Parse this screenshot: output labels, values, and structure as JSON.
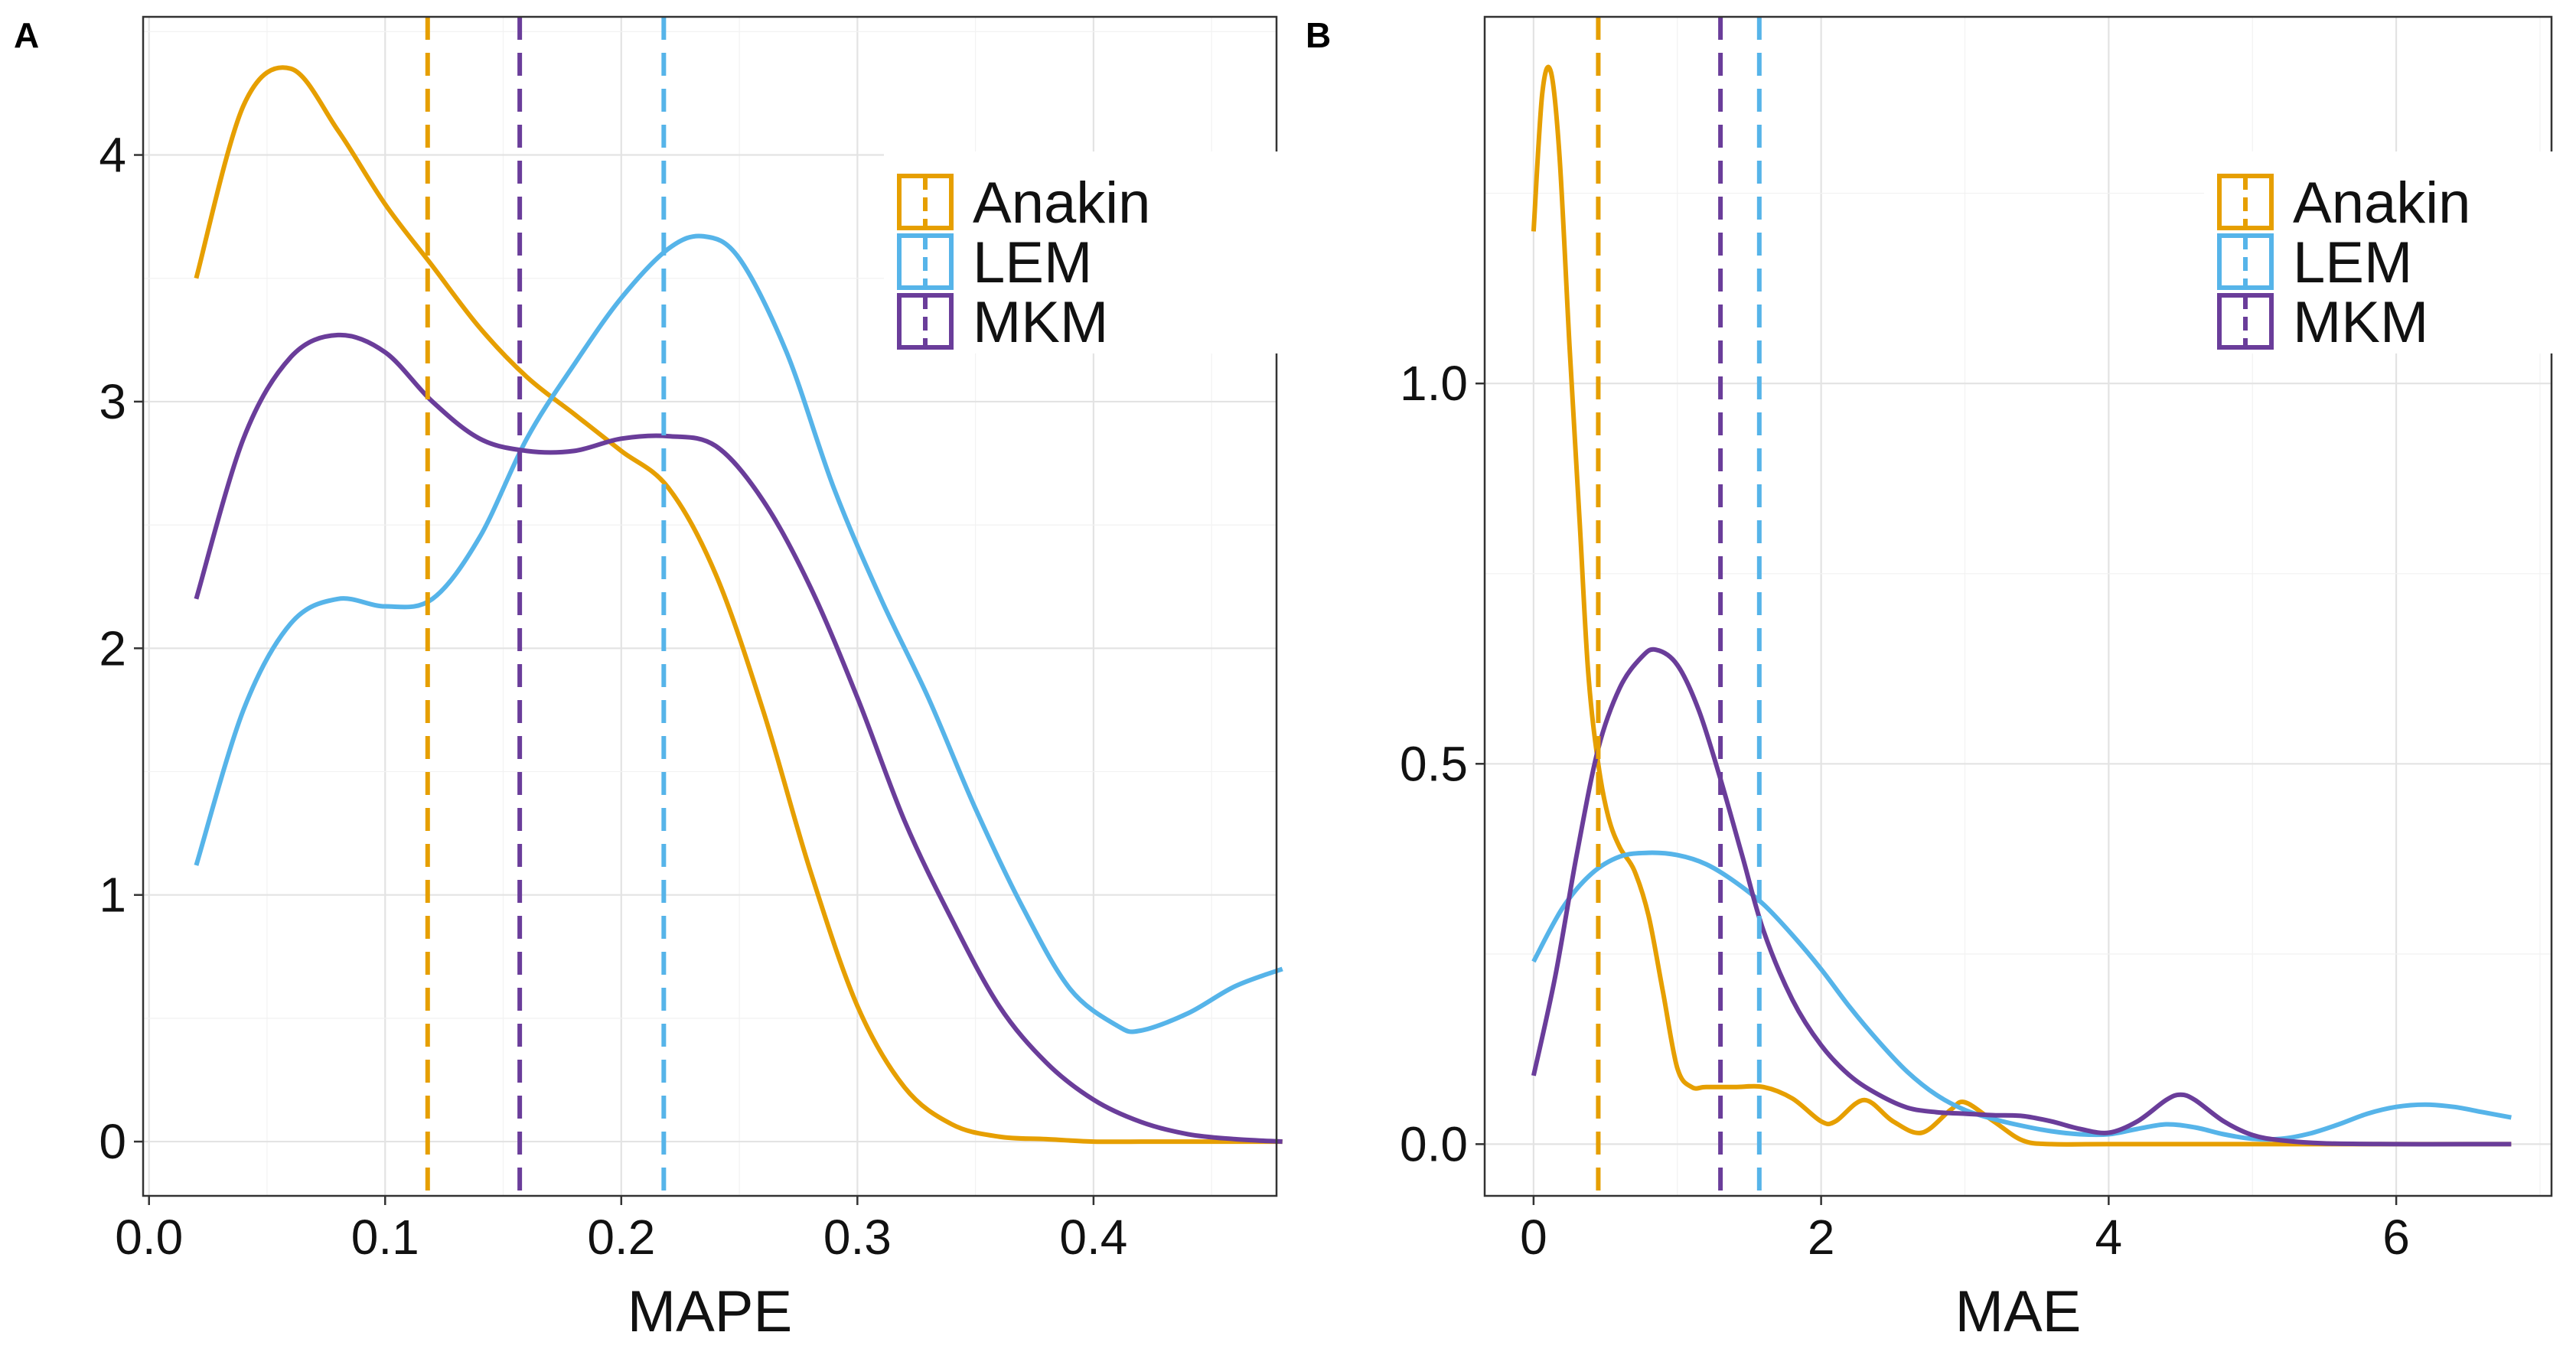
{
  "colors": {
    "Anakin": "#E69F00",
    "LEM": "#56B4E9",
    "MKM": "#6A3D9A"
  },
  "chart_data": [
    {
      "panel": "A",
      "type": "line",
      "xlabel": "MAPE",
      "ylabel": "",
      "xlim": [
        -0.0025,
        0.4775
      ],
      "ylim": [
        -0.22,
        4.56
      ],
      "xticks": [
        0.0,
        0.1,
        0.2,
        0.3,
        0.4
      ],
      "xtick_labels": [
        "0.0",
        "0.1",
        "0.2",
        "0.3",
        "0.4"
      ],
      "yticks": [
        0,
        1,
        2,
        3,
        4
      ],
      "ytick_labels": [
        "0",
        "1",
        "2",
        "3",
        "4"
      ],
      "grid": true,
      "legend": {
        "position": "top-right",
        "entries": [
          "Anakin",
          "LEM",
          "MKM"
        ]
      },
      "series": [
        {
          "name": "Anakin",
          "x": [
            0.02,
            0.04,
            0.06,
            0.08,
            0.1,
            0.12,
            0.14,
            0.16,
            0.18,
            0.2,
            0.22,
            0.24,
            0.26,
            0.28,
            0.3,
            0.32,
            0.34,
            0.36,
            0.38,
            0.4,
            0.42,
            0.44,
            0.46,
            0.48
          ],
          "y": [
            3.5,
            4.2,
            4.35,
            4.1,
            3.8,
            3.55,
            3.3,
            3.1,
            2.95,
            2.8,
            2.65,
            2.3,
            1.75,
            1.1,
            0.55,
            0.22,
            0.07,
            0.02,
            0.01,
            0.0,
            0.0,
            0.0,
            0.0,
            0.0
          ]
        },
        {
          "name": "LEM",
          "x": [
            0.02,
            0.04,
            0.06,
            0.08,
            0.1,
            0.12,
            0.14,
            0.16,
            0.18,
            0.2,
            0.22,
            0.235,
            0.25,
            0.27,
            0.29,
            0.31,
            0.33,
            0.35,
            0.37,
            0.39,
            0.41,
            0.42,
            0.44,
            0.46,
            0.48
          ],
          "y": [
            1.12,
            1.75,
            2.1,
            2.2,
            2.17,
            2.2,
            2.45,
            2.85,
            3.15,
            3.42,
            3.62,
            3.67,
            3.58,
            3.2,
            2.65,
            2.2,
            1.8,
            1.35,
            0.95,
            0.62,
            0.47,
            0.45,
            0.52,
            0.63,
            0.7
          ]
        },
        {
          "name": "MKM",
          "x": [
            0.02,
            0.04,
            0.06,
            0.08,
            0.1,
            0.12,
            0.14,
            0.16,
            0.18,
            0.2,
            0.22,
            0.24,
            0.26,
            0.28,
            0.3,
            0.32,
            0.34,
            0.36,
            0.38,
            0.4,
            0.42,
            0.44,
            0.46,
            0.48
          ],
          "y": [
            2.2,
            2.85,
            3.18,
            3.27,
            3.2,
            3.0,
            2.85,
            2.8,
            2.8,
            2.85,
            2.86,
            2.82,
            2.6,
            2.25,
            1.8,
            1.3,
            0.9,
            0.55,
            0.32,
            0.17,
            0.08,
            0.03,
            0.01,
            0.0
          ]
        }
      ],
      "vlines": [
        {
          "name": "Anakin",
          "x": 0.118
        },
        {
          "name": "MKM",
          "x": 0.157
        },
        {
          "name": "LEM",
          "x": 0.218
        }
      ]
    },
    {
      "panel": "B",
      "type": "line",
      "xlabel": "MAE",
      "ylabel": "",
      "xlim": [
        -0.34,
        7.08
      ],
      "ylim": [
        -0.068,
        1.482
      ],
      "xticks": [
        0,
        2,
        4,
        6
      ],
      "xtick_labels": [
        "0",
        "2",
        "4",
        "6"
      ],
      "yticks": [
        0.0,
        0.5,
        1.0
      ],
      "ytick_labels": [
        "0.0",
        "0.5",
        "1.0"
      ],
      "grid": true,
      "legend": {
        "position": "top-right",
        "entries": [
          "Anakin",
          "LEM",
          "MKM"
        ]
      },
      "series": [
        {
          "name": "Anakin",
          "x": [
            0,
            0.06,
            0.12,
            0.18,
            0.25,
            0.32,
            0.38,
            0.45,
            0.52,
            0.6,
            0.7,
            0.8,
            0.9,
            1.0,
            1.1,
            1.2,
            1.4,
            1.6,
            1.8,
            2.0,
            2.1,
            2.3,
            2.5,
            2.7,
            2.9,
            3.0,
            3.2,
            3.4,
            3.6,
            4.0,
            5.0,
            6.0,
            6.8
          ],
          "y": [
            1.2,
            1.38,
            1.41,
            1.3,
            1.05,
            0.82,
            0.62,
            0.5,
            0.43,
            0.39,
            0.36,
            0.3,
            0.2,
            0.1,
            0.075,
            0.075,
            0.075,
            0.075,
            0.06,
            0.03,
            0.03,
            0.058,
            0.03,
            0.015,
            0.045,
            0.055,
            0.03,
            0.005,
            0.0,
            0.0,
            0.0,
            0.0,
            0.0
          ]
        },
        {
          "name": "LEM",
          "x": [
            0,
            0.2,
            0.4,
            0.6,
            0.8,
            1.0,
            1.2,
            1.4,
            1.6,
            1.8,
            2.0,
            2.2,
            2.4,
            2.6,
            2.8,
            3.0,
            3.2,
            3.4,
            3.6,
            3.8,
            4.0,
            4.2,
            4.4,
            4.6,
            4.8,
            5.0,
            5.2,
            5.4,
            5.6,
            5.8,
            6.0,
            6.2,
            6.4,
            6.6,
            6.8
          ],
          "y": [
            0.24,
            0.31,
            0.355,
            0.378,
            0.383,
            0.38,
            0.368,
            0.345,
            0.315,
            0.275,
            0.23,
            0.18,
            0.135,
            0.095,
            0.065,
            0.045,
            0.033,
            0.024,
            0.017,
            0.013,
            0.013,
            0.02,
            0.026,
            0.022,
            0.013,
            0.007,
            0.007,
            0.014,
            0.026,
            0.04,
            0.049,
            0.052,
            0.049,
            0.042,
            0.035
          ]
        },
        {
          "name": "MKM",
          "x": [
            0,
            0.15,
            0.3,
            0.45,
            0.6,
            0.75,
            0.85,
            1.0,
            1.15,
            1.3,
            1.45,
            1.6,
            1.8,
            2.0,
            2.2,
            2.4,
            2.6,
            2.8,
            3.0,
            3.2,
            3.4,
            3.6,
            3.8,
            4.0,
            4.2,
            4.4,
            4.5,
            4.6,
            4.8,
            5.0,
            5.2,
            5.5,
            6.0,
            6.5,
            6.8
          ],
          "y": [
            0.09,
            0.22,
            0.38,
            0.52,
            0.6,
            0.64,
            0.65,
            0.63,
            0.57,
            0.48,
            0.38,
            0.28,
            0.19,
            0.13,
            0.09,
            0.065,
            0.048,
            0.042,
            0.04,
            0.038,
            0.037,
            0.03,
            0.02,
            0.015,
            0.03,
            0.058,
            0.065,
            0.058,
            0.03,
            0.012,
            0.005,
            0.001,
            0.0,
            0.0,
            0.0
          ]
        }
      ],
      "vlines": [
        {
          "name": "Anakin",
          "x": 0.45
        },
        {
          "name": "MKM",
          "x": 1.3
        },
        {
          "name": "LEM",
          "x": 1.57
        }
      ]
    }
  ]
}
